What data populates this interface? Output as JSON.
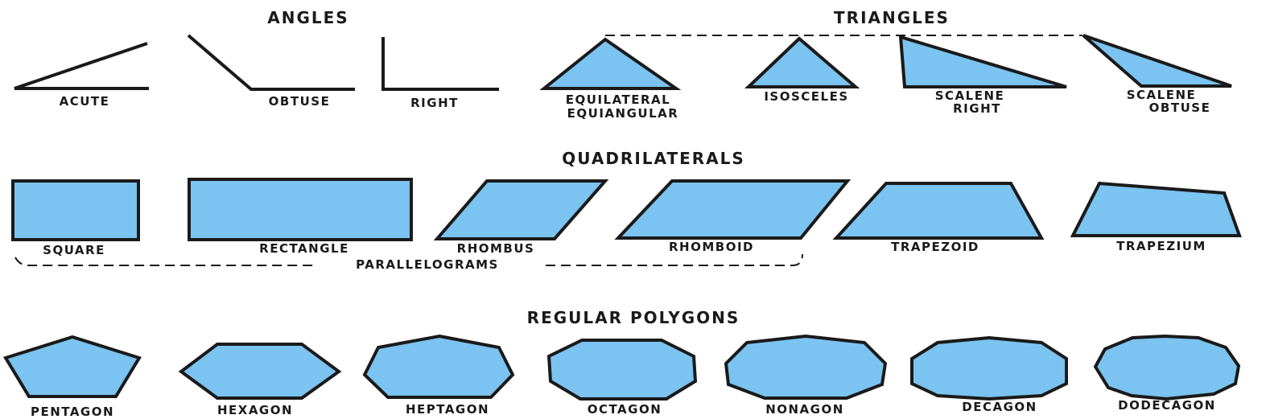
{
  "sections": {
    "angles": "ANGLES",
    "triangles": "TRIANGLES",
    "quadrilaterals": "QUADRILATERALS",
    "regular_polygons": "REGULAR POLYGONS"
  },
  "angles": {
    "acute": "ACUTE",
    "obtuse": "OBTUSE",
    "right": "RIGHT"
  },
  "triangles": {
    "equilateral": [
      "EQUILATERAL",
      "EQUIANGULAR"
    ],
    "isosceles": "ISOSCELES",
    "scalene_right": [
      "SCALENE",
      "RIGHT"
    ],
    "scalene_obtuse": [
      "SCALENE",
      "OBTUSE"
    ]
  },
  "quadrilaterals": {
    "square": "SQUARE",
    "rectangle": "RECTANGLE",
    "rhombus": "RHOMBUS",
    "rhomboid": "RHOMBOID",
    "trapezoid": "TRAPEZOID",
    "trapezium": "TRAPEZIUM",
    "group_label": "PARALLELOGRAMS"
  },
  "polygons": [
    {
      "name": "PENTAGON",
      "sides": 5
    },
    {
      "name": "HEXAGON",
      "sides": 6
    },
    {
      "name": "HEPTAGON",
      "sides": 7
    },
    {
      "name": "OCTAGON",
      "sides": 8
    },
    {
      "name": "NONAGON",
      "sides": 9
    },
    {
      "name": "DECAGON",
      "sides": 10
    },
    {
      "name": "DODECAGON",
      "sides": 12
    }
  ],
  "colors": {
    "fill": "#7bc3f0",
    "stroke": "#1a1a1a"
  }
}
